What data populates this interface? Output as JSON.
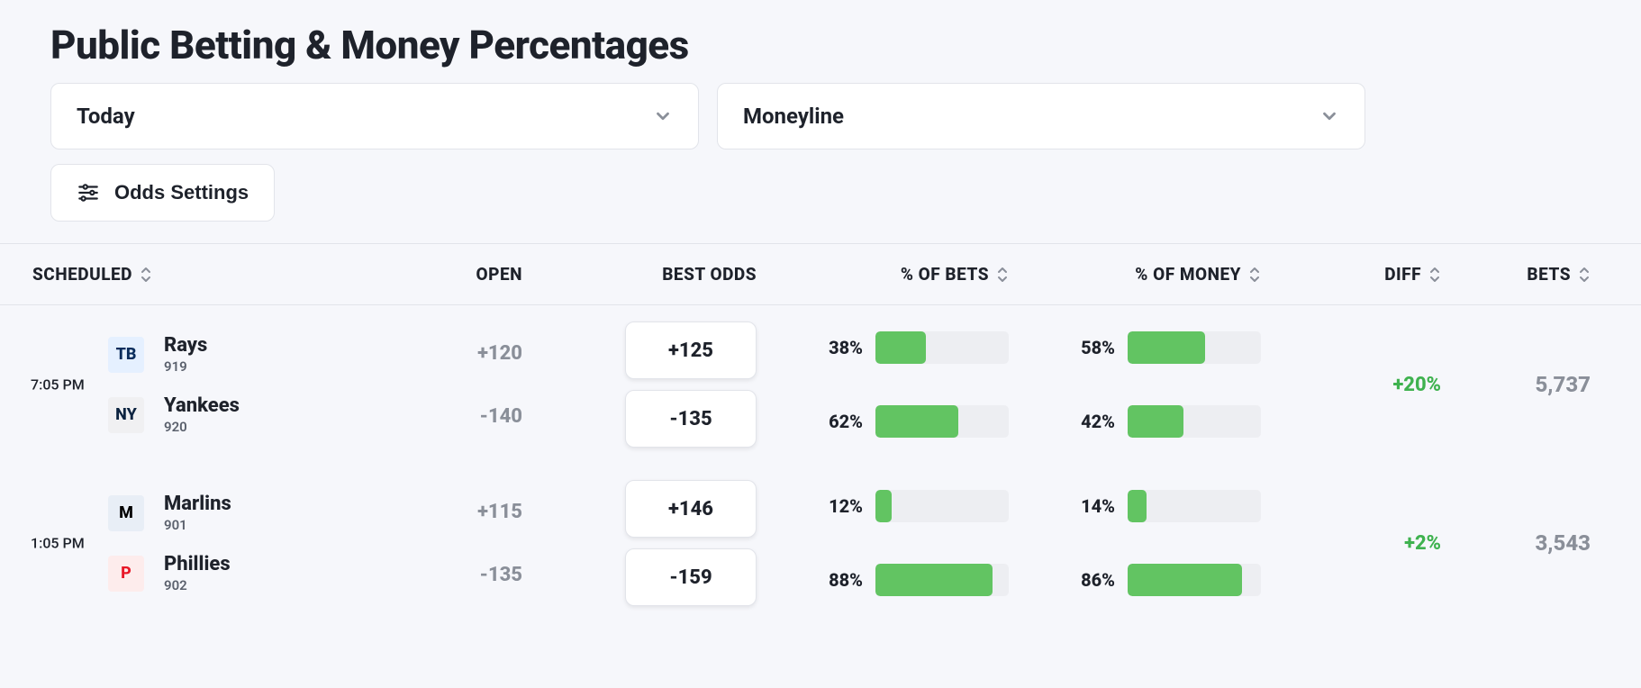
{
  "colors": {
    "background": "#f6f7fb",
    "text_primary": "#1e222b",
    "text_muted": "#8a8f99",
    "border": "#e2e4ea",
    "bar_track": "#edeef2",
    "bar_fill": "#62c462",
    "diff_positive": "#3fb24f"
  },
  "header": {
    "title": "Public Betting & Money Percentages"
  },
  "filters": {
    "date": {
      "label": "Today"
    },
    "market": {
      "label": "Moneyline"
    },
    "odds_settings": {
      "label": "Odds Settings"
    }
  },
  "columns": {
    "scheduled": "SCHEDULED",
    "open": "OPEN",
    "best_odds": "BEST ODDS",
    "pct_bets": "% OF BETS",
    "pct_money": "% OF MONEY",
    "diff": "DIFF",
    "bets": "BETS"
  },
  "games": [
    {
      "time": "7:05 PM",
      "diff": "+20%",
      "diff_color": "#3fb24f",
      "total_bets": "5,737",
      "teams": [
        {
          "name": "Rays",
          "rotation": "919",
          "logo": {
            "abbr": "TB",
            "fg": "#092c5c",
            "bg": "#e5f0ff"
          },
          "open": "+120",
          "best_odds": "+125",
          "pct_bets": 38,
          "pct_money": 58
        },
        {
          "name": "Yankees",
          "rotation": "920",
          "logo": {
            "abbr": "NY",
            "fg": "#0c2340",
            "bg": "#f0f0f2"
          },
          "open": "-140",
          "best_odds": "-135",
          "pct_bets": 62,
          "pct_money": 42
        }
      ]
    },
    {
      "time": "1:05 PM",
      "diff": "+2%",
      "diff_color": "#3fb24f",
      "total_bets": "3,543",
      "teams": [
        {
          "name": "Marlins",
          "rotation": "901",
          "logo": {
            "abbr": "M",
            "fg": "#000000",
            "bg": "#e8eef6"
          },
          "open": "+115",
          "best_odds": "+146",
          "pct_bets": 12,
          "pct_money": 14
        },
        {
          "name": "Phillies",
          "rotation": "902",
          "logo": {
            "abbr": "P",
            "fg": "#e81828",
            "bg": "#fdecec"
          },
          "open": "-135",
          "best_odds": "-159",
          "pct_bets": 88,
          "pct_money": 86
        }
      ]
    }
  ]
}
